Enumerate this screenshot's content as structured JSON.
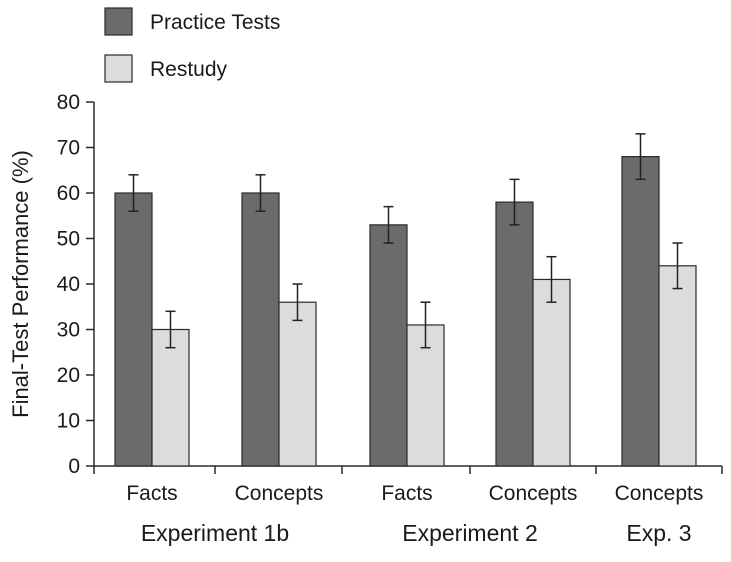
{
  "chart_data": {
    "type": "bar",
    "title": "",
    "xlabel": "",
    "ylabel": "Final-Test Performance (%)",
    "ylim": [
      0,
      80
    ],
    "yticks": [
      0,
      10,
      20,
      30,
      40,
      50,
      60,
      70,
      80
    ],
    "categories": [
      "Facts",
      "Concepts",
      "Facts",
      "Concepts",
      "Concepts"
    ],
    "groups": [
      {
        "label": "Experiment 1b",
        "categories": [
          0,
          1
        ]
      },
      {
        "label": "Experiment 2",
        "categories": [
          2,
          3
        ]
      },
      {
        "label": "Exp. 3",
        "categories": [
          4
        ]
      }
    ],
    "series": [
      {
        "name": "Practice Tests",
        "color": "#6b6b6b",
        "values": [
          60,
          60,
          53,
          58,
          68
        ],
        "error": [
          4,
          4,
          4,
          5,
          5
        ]
      },
      {
        "name": "Restudy",
        "color": "#dcdcdc",
        "values": [
          30,
          36,
          31,
          41,
          44
        ],
        "error": [
          4,
          4,
          5,
          5,
          5
        ]
      }
    ],
    "grid": false,
    "legend_position": "top-left"
  }
}
